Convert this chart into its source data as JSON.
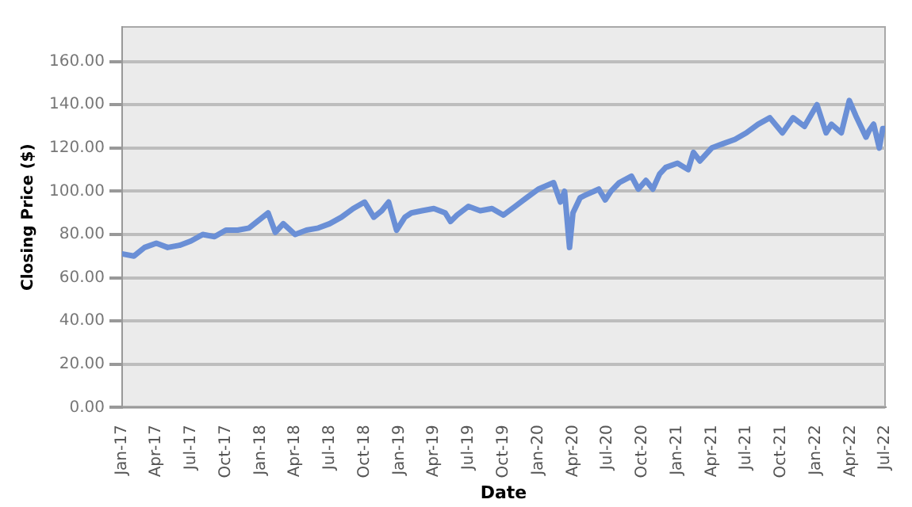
{
  "chart_data": {
    "type": "line",
    "xlabel": "Date",
    "ylabel": "Closing Price ($)",
    "x": [
      "2017-01-03",
      "2017-02-01",
      "2017-03-01",
      "2017-04-01",
      "2017-05-01",
      "2017-06-01",
      "2017-07-01",
      "2017-08-01",
      "2017-09-01",
      "2017-10-01",
      "2017-11-01",
      "2017-12-01",
      "2018-01-20",
      "2018-02-08",
      "2018-03-01",
      "2018-04-01",
      "2018-05-01",
      "2018-06-01",
      "2018-07-01",
      "2018-08-01",
      "2018-09-01",
      "2018-10-01",
      "2018-10-25",
      "2018-11-15",
      "2018-12-03",
      "2018-12-24",
      "2019-01-15",
      "2019-02-01",
      "2019-03-01",
      "2019-04-01",
      "2019-05-01",
      "2019-05-15",
      "2019-06-01",
      "2019-07-01",
      "2019-08-01",
      "2019-09-01",
      "2019-10-01",
      "2019-11-01",
      "2019-12-01",
      "2020-01-01",
      "2020-02-10",
      "2020-02-28",
      "2020-03-10",
      "2020-03-23",
      "2020-04-01",
      "2020-04-20",
      "2020-05-01",
      "2020-06-08",
      "2020-06-25",
      "2020-07-10",
      "2020-08-01",
      "2020-09-02",
      "2020-09-20",
      "2020-10-10",
      "2020-10-28",
      "2020-11-15",
      "2020-12-01",
      "2021-01-01",
      "2021-01-29",
      "2021-02-12",
      "2021-03-01",
      "2021-04-01",
      "2021-05-01",
      "2021-06-01",
      "2021-07-01",
      "2021-08-01",
      "2021-09-01",
      "2021-10-04",
      "2021-11-01",
      "2021-12-01",
      "2022-01-03",
      "2022-01-27",
      "2022-02-10",
      "2022-03-08",
      "2022-03-29",
      "2022-04-15",
      "2022-05-12",
      "2022-05-20",
      "2022-06-01",
      "2022-06-16",
      "2022-06-25",
      "2022-06-30"
    ],
    "series": [
      {
        "color": "#6a8fd6",
        "values": [
          71,
          70,
          74,
          76,
          74,
          75,
          77,
          80,
          79,
          82,
          82,
          83,
          90,
          81,
          85,
          80,
          82,
          83,
          85,
          88,
          92,
          95,
          88,
          91,
          95,
          82,
          88,
          90,
          91,
          92,
          90,
          86,
          89,
          93,
          91,
          92,
          89,
          93,
          97,
          101,
          104,
          95,
          100,
          74,
          90,
          97,
          98,
          101,
          96,
          100,
          104,
          107,
          101,
          105,
          101,
          108,
          111,
          113,
          110,
          118,
          114,
          120,
          122,
          124,
          127,
          131,
          134,
          127,
          134,
          130,
          140,
          127,
          131,
          127,
          142,
          135,
          125,
          128,
          131,
          120,
          129,
          129
        ]
      }
    ],
    "xlim": [
      "2017-01-01",
      "2022-07-01"
    ],
    "xticks": [
      {
        "value": "2017-01-01",
        "label": "Jan-17"
      },
      {
        "value": "2017-04-01",
        "label": "Apr-17"
      },
      {
        "value": "2017-07-01",
        "label": "Jul-17"
      },
      {
        "value": "2017-10-01",
        "label": "Oct-17"
      },
      {
        "value": "2018-01-01",
        "label": "Jan-18"
      },
      {
        "value": "2018-04-01",
        "label": "Apr-18"
      },
      {
        "value": "2018-07-01",
        "label": "Jul-18"
      },
      {
        "value": "2018-10-01",
        "label": "Oct-18"
      },
      {
        "value": "2019-01-01",
        "label": "Jan-19"
      },
      {
        "value": "2019-04-01",
        "label": "Apr-19"
      },
      {
        "value": "2019-07-01",
        "label": "Jul-19"
      },
      {
        "value": "2019-10-01",
        "label": "Oct-19"
      },
      {
        "value": "2020-01-01",
        "label": "Jan-20"
      },
      {
        "value": "2020-04-01",
        "label": "Apr-20"
      },
      {
        "value": "2020-07-01",
        "label": "Jul-20"
      },
      {
        "value": "2020-10-01",
        "label": "Oct-20"
      },
      {
        "value": "2021-01-01",
        "label": "Jan-21"
      },
      {
        "value": "2021-04-01",
        "label": "Apr-21"
      },
      {
        "value": "2021-07-01",
        "label": "Jul-21"
      },
      {
        "value": "2021-10-01",
        "label": "Oct-21"
      },
      {
        "value": "2022-01-01",
        "label": "Jan-22"
      },
      {
        "value": "2022-04-01",
        "label": "Apr-22"
      },
      {
        "value": "2022-07-01",
        "label": "Jul-22"
      }
    ],
    "ylim": [
      0,
      176
    ],
    "yticks": [
      {
        "value": 0,
        "label": "0.00"
      },
      {
        "value": 20,
        "label": "20.00"
      },
      {
        "value": 40,
        "label": "40.00"
      },
      {
        "value": 60,
        "label": "60.00"
      },
      {
        "value": 80,
        "label": "80.00"
      },
      {
        "value": 100,
        "label": "100.00"
      },
      {
        "value": 120,
        "label": "120.00"
      },
      {
        "value": 140,
        "label": "140.00"
      },
      {
        "value": 160,
        "label": "160.00"
      }
    ],
    "grid": "y",
    "legend": false,
    "marker": "none",
    "line_style": "solid"
  }
}
